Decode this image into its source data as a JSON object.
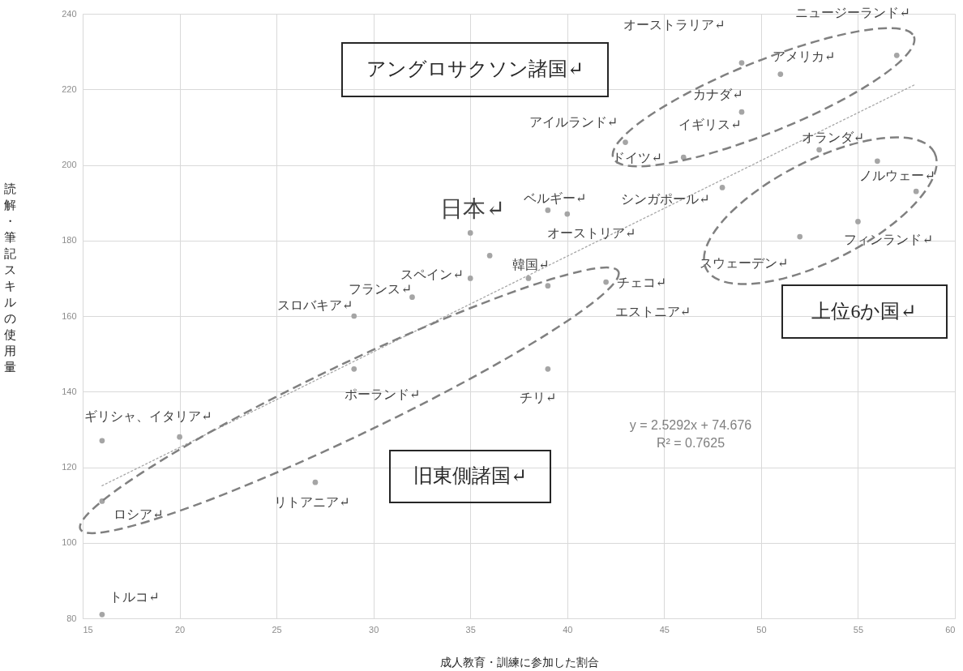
{
  "chart_data": {
    "type": "scatter",
    "xlabel": "成人教育・訓練に参加した割合",
    "ylabel": "読解・筆記スキルの使用量",
    "xlim": [
      15,
      60
    ],
    "xticks": [
      15,
      20,
      25,
      30,
      35,
      40,
      45,
      50,
      55,
      60
    ],
    "ylim": [
      80,
      240
    ],
    "yticks": [
      80,
      100,
      120,
      140,
      160,
      180,
      200,
      220,
      240
    ],
    "grid": true,
    "series": [
      {
        "type": "scatter",
        "color": "#a5a5a5",
        "marker": "circle",
        "x": [
          16,
          16,
          16,
          20,
          27,
          29,
          29,
          32,
          35,
          35,
          36,
          38,
          39,
          39,
          39,
          40,
          42,
          43,
          46,
          48,
          49,
          49,
          51,
          52,
          53,
          55,
          56,
          57,
          58
        ],
        "values": [
          81,
          111,
          127,
          128,
          116,
          146,
          160,
          165,
          170,
          182,
          176,
          170,
          168,
          146,
          188,
          187,
          169,
          206,
          202,
          194,
          227,
          214,
          224,
          181,
          204,
          185,
          201,
          229,
          193
        ]
      },
      {
        "type": "line",
        "color": "#a6a6a6",
        "line_style": "dotted",
        "x": [
          16,
          58
        ],
        "values": [
          115.1,
          221.4
        ]
      }
    ],
    "annotations": [
      {
        "text": "オーストラリア↵",
        "x": 49,
        "y": 227
      },
      {
        "text": "ニュージーランド↵",
        "x": 57,
        "y": 229
      },
      {
        "text": "カナダ↵",
        "x": 49,
        "y": 214
      },
      {
        "text": "アメリカ↵",
        "x": 51,
        "y": 224
      },
      {
        "text": "アイルランド↵",
        "x": 43,
        "y": 206
      },
      {
        "text": "イギリス↵",
        "x": 49,
        "y": 214
      },
      {
        "text": "ドイツ↵",
        "x": 46,
        "y": 202
      },
      {
        "text": "オランダ↵",
        "x": 53,
        "y": 204
      },
      {
        "text": "ノルウェー↵",
        "x": 58,
        "y": 193
      },
      {
        "text": "シンガポール↵",
        "x": 48,
        "y": 194
      },
      {
        "text": "ベルギー↵",
        "x": 39,
        "y": 188
      },
      {
        "text": "オーストリア↵",
        "x": 40,
        "y": 187
      },
      {
        "text": "フィンランド↵",
        "x": 55,
        "y": 185
      },
      {
        "text": "スウェーデン↵",
        "x": 52,
        "y": 181
      },
      {
        "text": "韓国↵",
        "x": 38,
        "y": 170
      },
      {
        "text": "チェコ↵",
        "x": 42,
        "y": 169
      },
      {
        "text": "エストニア↵",
        "x": 42,
        "y": 169
      },
      {
        "text": "日本↵",
        "x": 35,
        "y": 182
      },
      {
        "text": "スペイン↵",
        "x": 35,
        "y": 170
      },
      {
        "text": "スロバキア↵",
        "x": 29,
        "y": 160
      },
      {
        "text": "フランス↵",
        "x": 32,
        "y": 165
      },
      {
        "text": "ポーランド↵",
        "x": 29,
        "y": 146
      },
      {
        "text": "チリ↵",
        "x": 39,
        "y": 146
      },
      {
        "text": "ギリシャ、イタリア↵",
        "x": 16,
        "y": 127
      },
      {
        "text": "ロシア↵",
        "x": 16,
        "y": 111
      },
      {
        "text": "リトアニア↵",
        "x": 27,
        "y": 116
      },
      {
        "text": "トルコ↵",
        "x": 16,
        "y": 81
      },
      "アングロサクソン諸国↵",
      "上位6か国↵",
      "旧東側諸国↵",
      "y = 2.5292x + 74.676",
      "R² = 0.7625"
    ]
  }
}
